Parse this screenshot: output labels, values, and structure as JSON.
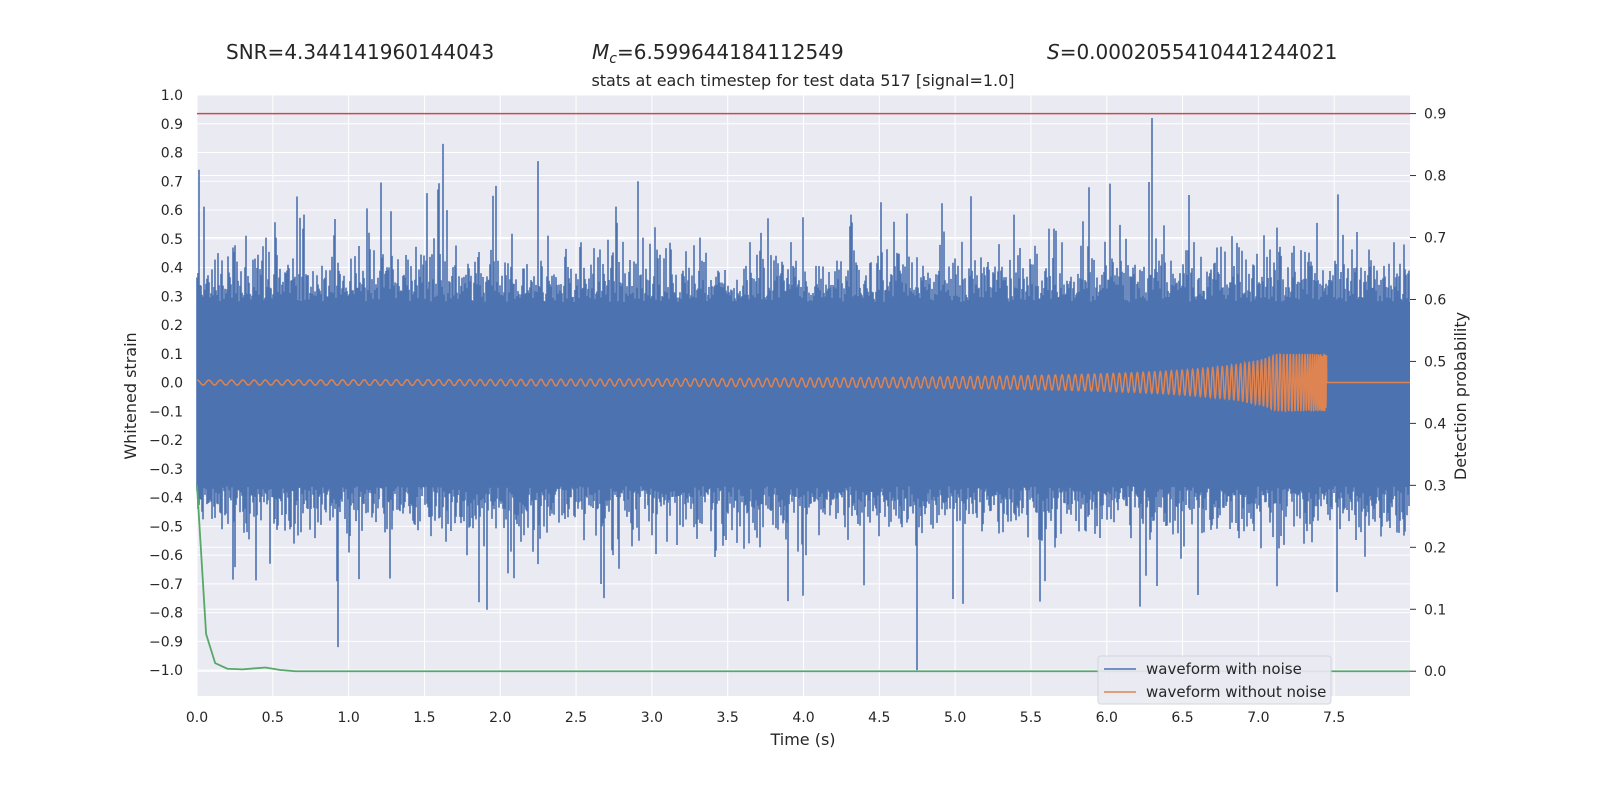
{
  "stats": {
    "snr_label": "SNR=",
    "snr_value": "4.344141960144043",
    "mc_symbol": "M",
    "mc_sub": "c",
    "mc_value": "=6.599644184112549",
    "s_symbol": "S",
    "s_value": "=0.0002055410441244021"
  },
  "colors": {
    "plot_bg": "#eaeaf2",
    "grid": "#ffffff",
    "noisy": "#4c72b0",
    "clean": "#dd8452",
    "prob": "#55a868",
    "threshold": "#c44e52"
  },
  "chart_data": {
    "type": "line",
    "title": "stats at each timestep for test data 517 [signal=1.0]",
    "xlabel": "Time (s)",
    "ylabel": "Whitened strain",
    "y2label": "Detection probability",
    "xlim": [
      0.0,
      8.0
    ],
    "ylim": [
      -1.09,
      1.0
    ],
    "y2lim": [
      -0.04,
      0.93
    ],
    "xticks": [
      "0.0",
      "0.5",
      "1.0",
      "1.5",
      "2.0",
      "2.5",
      "3.0",
      "3.5",
      "4.0",
      "4.5",
      "5.0",
      "5.5",
      "6.0",
      "6.5",
      "7.0",
      "7.5"
    ],
    "yticks": [
      "1.0",
      "0.9",
      "0.8",
      "0.7",
      "0.6",
      "0.5",
      "0.4",
      "0.3",
      "0.2",
      "0.1",
      "0.0",
      "−0.1",
      "−0.2",
      "−0.3",
      "−0.4",
      "−0.5",
      "−0.6",
      "−0.7",
      "−0.8",
      "−0.9",
      "−1.0"
    ],
    "y2ticks": [
      "0.9",
      "0.8",
      "0.7",
      "0.6",
      "0.5",
      "0.4",
      "0.3",
      "0.2",
      "0.1",
      "0.0"
    ],
    "legend": {
      "position": "lower-right",
      "entries": [
        "waveform with noise",
        "waveform without noise"
      ]
    },
    "series": [
      {
        "name": "waveform with noise",
        "description": "whitened strain with noise, approx. range -1.0 to 0.92",
        "peaks": [
          [
            0.01,
            0.74
          ],
          [
            1.62,
            0.83
          ],
          [
            2.25,
            0.77
          ],
          [
            6.3,
            0.92
          ],
          [
            0.93,
            -0.92
          ],
          [
            1.91,
            -0.79
          ],
          [
            4.75,
            -1.0
          ],
          [
            3.9,
            -0.76
          ]
        ]
      },
      {
        "name": "waveform without noise",
        "description": "chirp signal with growing amplitude, merger near t=7.45 s",
        "merger_time": 7.45,
        "peak_amplitude": 0.1
      },
      {
        "name": "detection probability",
        "axis": "right",
        "x": [
          0.0,
          0.06,
          0.12,
          0.2,
          0.3,
          0.45,
          0.55,
          0.65,
          1.0,
          8.0
        ],
        "values": [
          0.3,
          0.06,
          0.013,
          0.004,
          0.003,
          0.006,
          0.002,
          0.0,
          0.0,
          0.0
        ]
      },
      {
        "name": "threshold",
        "axis": "right",
        "value": 0.9
      }
    ]
  }
}
